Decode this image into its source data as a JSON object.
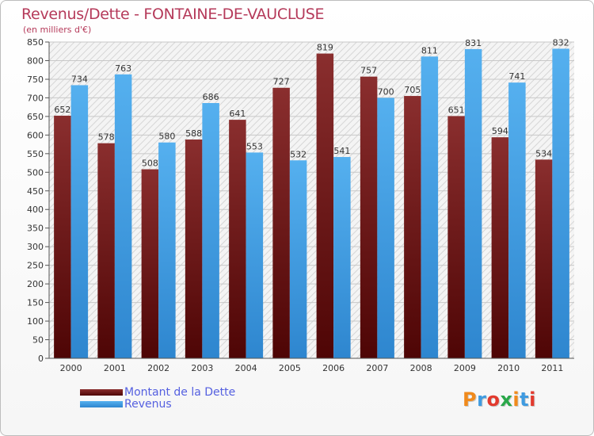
{
  "title": "Revenus/Dette - FONTAINE-DE-VAUCLUSE",
  "subtitle": "(en milliers d'€)",
  "logo": "Proxiti",
  "colors": {
    "dette": "#6e1a1a",
    "revenus": "#3f9be0",
    "title": "#b53a5a",
    "legend_text": "#5560e0"
  },
  "legend": [
    {
      "label": "Montant de la Dette",
      "color": "#6e1a1a"
    },
    {
      "label": "Revenus",
      "color": "#3f9be0"
    }
  ],
  "chart_data": {
    "type": "bar",
    "title": "Revenus/Dette - FONTAINE-DE-VAUCLUSE",
    "subtitle": "(en milliers d'€)",
    "categories": [
      "2000",
      "2001",
      "2002",
      "2003",
      "2004",
      "2005",
      "2006",
      "2007",
      "2008",
      "2009",
      "2010",
      "2011"
    ],
    "series": [
      {
        "name": "Montant de la Dette",
        "values": [
          652,
          578,
          508,
          588,
          641,
          727,
          819,
          757,
          705,
          651,
          594,
          534
        ]
      },
      {
        "name": "Revenus",
        "values": [
          734,
          763,
          580,
          686,
          553,
          532,
          541,
          700,
          811,
          831,
          741,
          832
        ]
      }
    ],
    "ylim": [
      0,
      850
    ],
    "yticks": [
      0,
      50,
      100,
      150,
      200,
      250,
      300,
      350,
      400,
      450,
      500,
      550,
      600,
      650,
      700,
      750,
      800,
      850
    ],
    "grid": true,
    "legend_position": "bottom-left"
  }
}
